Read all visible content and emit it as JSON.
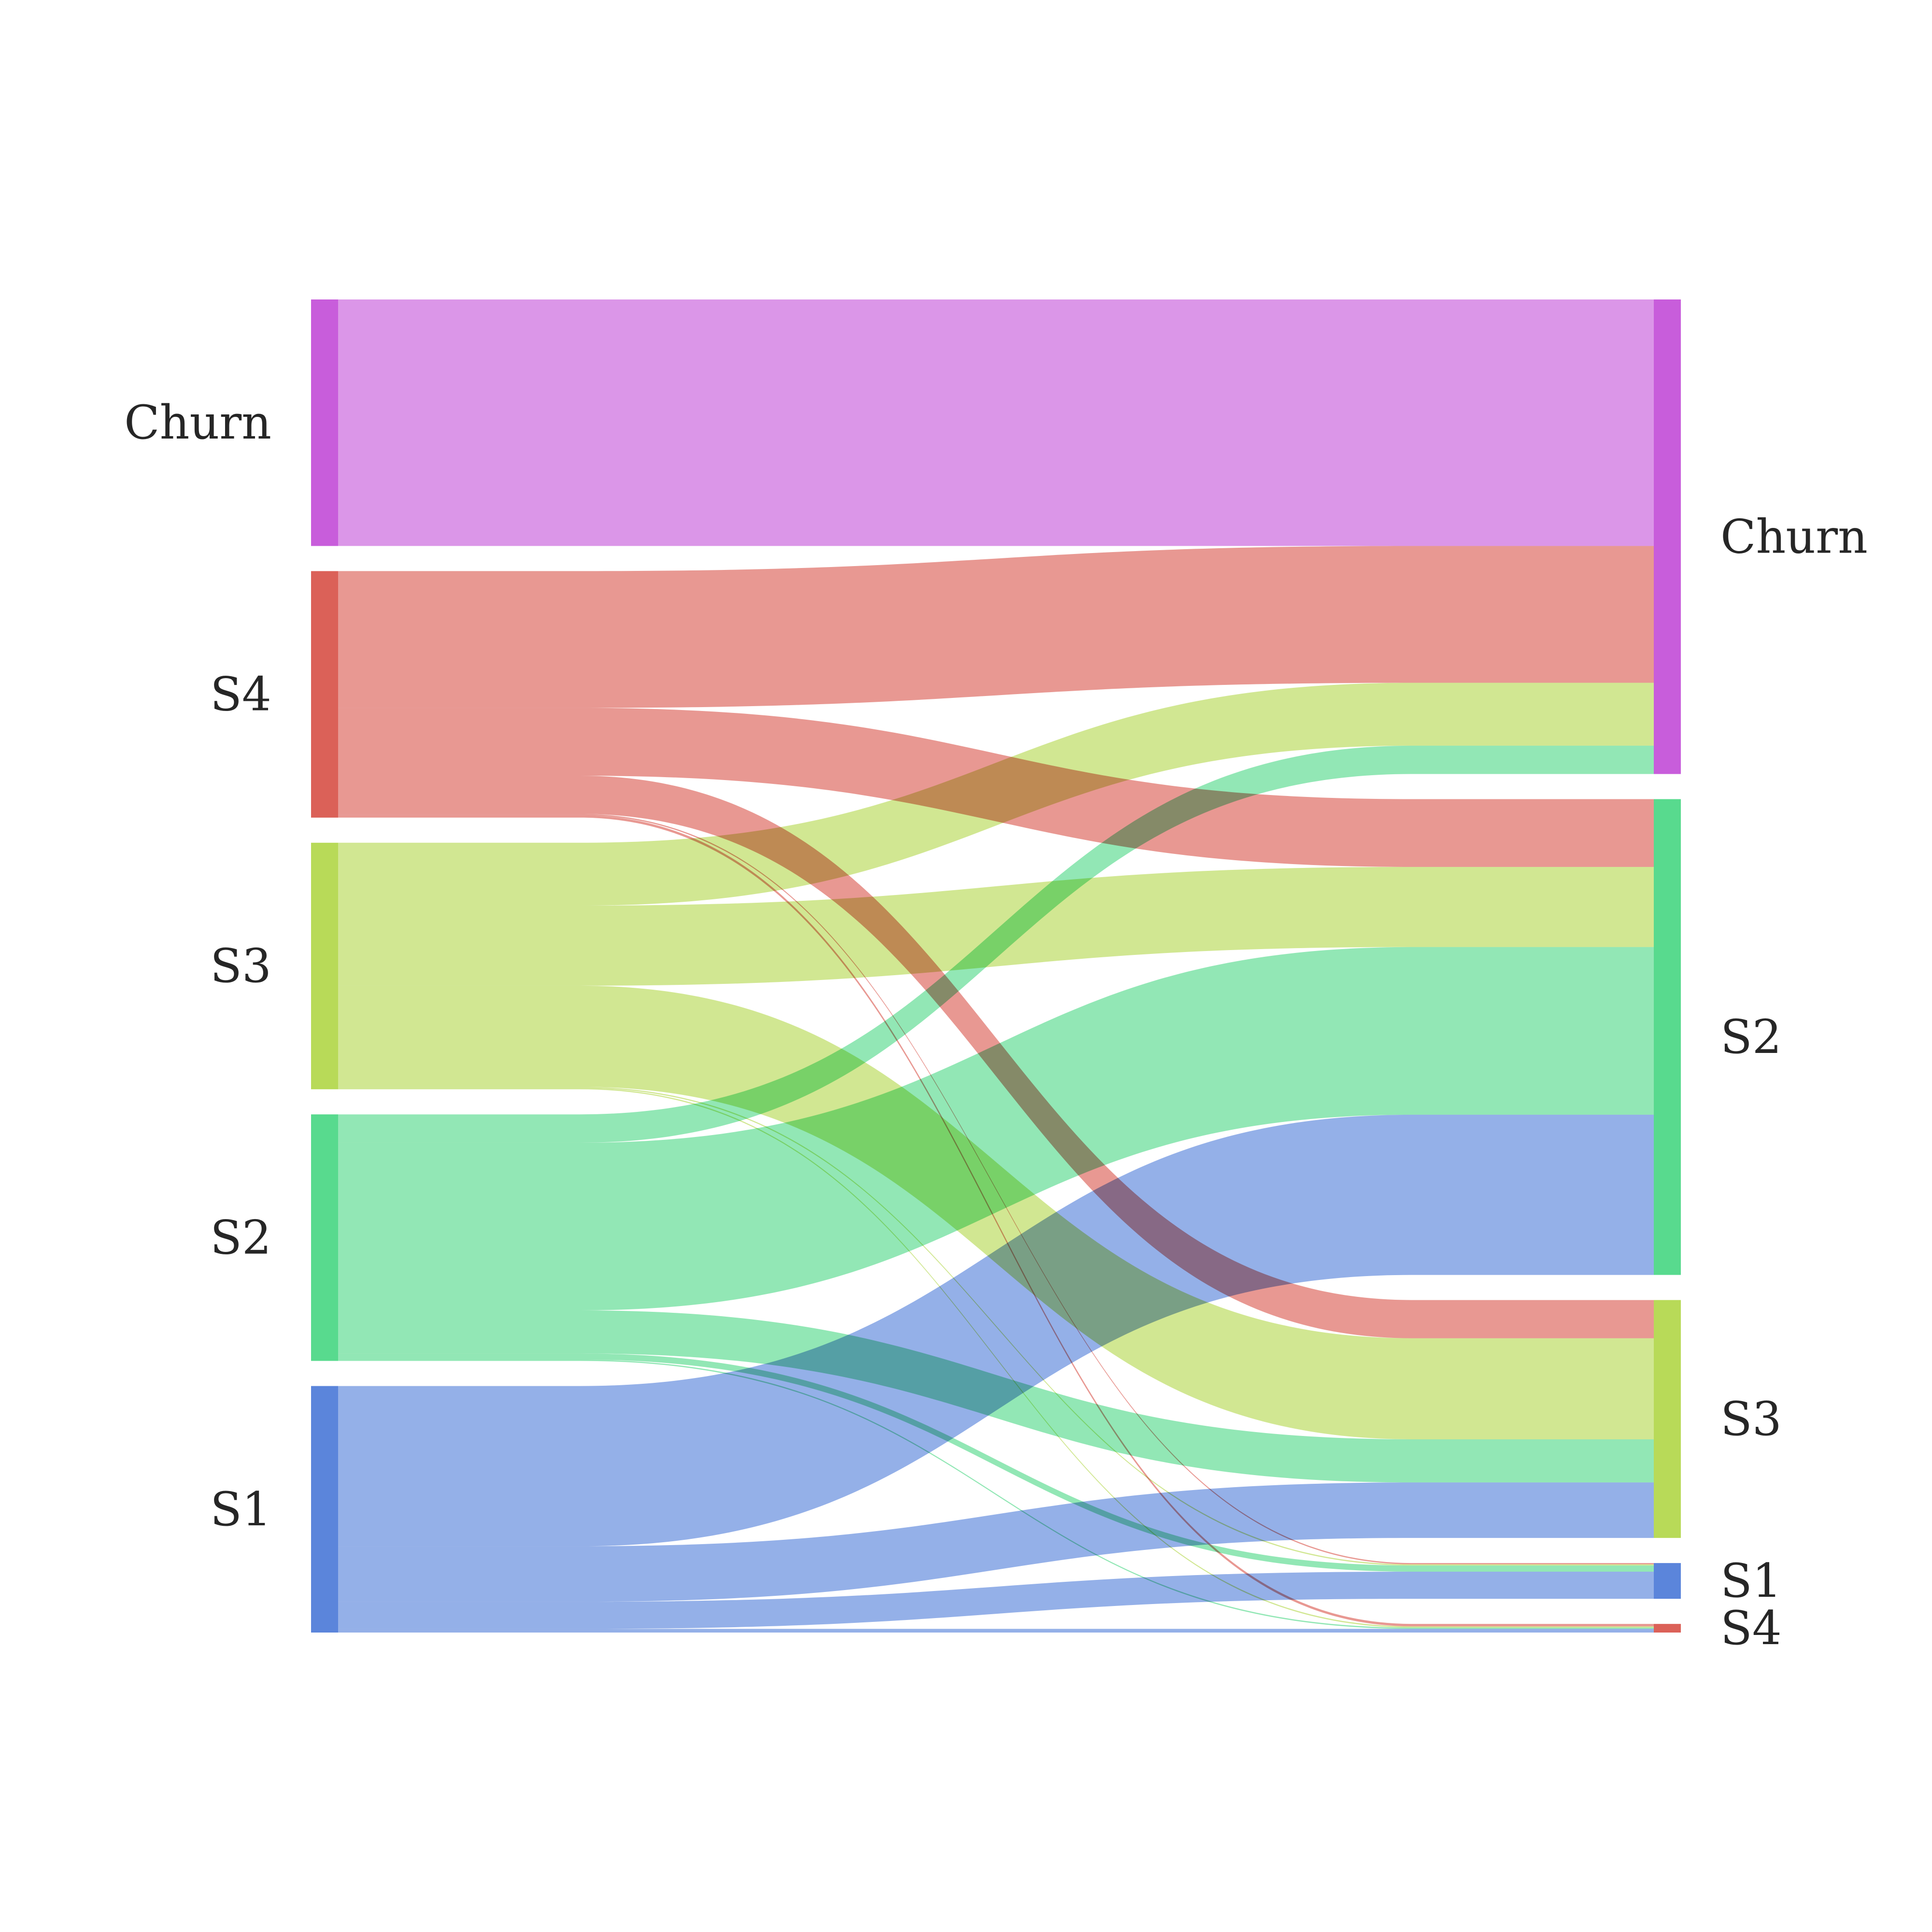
{
  "chart_data": {
    "type": "sankey",
    "title": "",
    "left_nodes": [
      {
        "id": "Churn",
        "label": "Churn",
        "color": "#c85ddb",
        "value": 100
      },
      {
        "id": "S4",
        "label": "S4",
        "color": "#db6158",
        "value": 100
      },
      {
        "id": "S3",
        "label": "S3",
        "color": "#b8da58",
        "value": 100
      },
      {
        "id": "S2",
        "label": "S2",
        "color": "#58da8e",
        "value": 100
      },
      {
        "id": "S1",
        "label": "S1",
        "color": "#5b85db",
        "value": 100
      }
    ],
    "right_nodes": [
      {
        "id": "Churn",
        "label": "Churn",
        "color": "#c85ddb"
      },
      {
        "id": "S2",
        "label": "S2",
        "color": "#58da8e"
      },
      {
        "id": "S3",
        "label": "S3",
        "color": "#b8da58"
      },
      {
        "id": "S1",
        "label": "S1",
        "color": "#5b85db"
      },
      {
        "id": "S4",
        "label": "S4",
        "color": "#db6158"
      }
    ],
    "flows": [
      {
        "source": "Churn",
        "target": "Churn",
        "value": 100
      },
      {
        "source": "S4",
        "target": "Churn",
        "value": 55.5
      },
      {
        "source": "S4",
        "target": "S2",
        "value": 27.5
      },
      {
        "source": "S4",
        "target": "S3",
        "value": 15.5
      },
      {
        "source": "S4",
        "target": "S1",
        "value": 0.5
      },
      {
        "source": "S4",
        "target": "S4",
        "value": 1
      },
      {
        "source": "S3",
        "target": "Churn",
        "value": 25.5
      },
      {
        "source": "S3",
        "target": "S2",
        "value": 32.5
      },
      {
        "source": "S3",
        "target": "S3",
        "value": 41
      },
      {
        "source": "S3",
        "target": "S1",
        "value": 0.5
      },
      {
        "source": "S3",
        "target": "S4",
        "value": 0.5
      },
      {
        "source": "S2",
        "target": "Churn",
        "value": 11.5
      },
      {
        "source": "S2",
        "target": "S2",
        "value": 68
      },
      {
        "source": "S2",
        "target": "S3",
        "value": 17.5
      },
      {
        "source": "S2",
        "target": "S1",
        "value": 2.5
      },
      {
        "source": "S2",
        "target": "S4",
        "value": 0.5
      },
      {
        "source": "S1",
        "target": "S2",
        "value": 65
      },
      {
        "source": "S1",
        "target": "S3",
        "value": 22.5
      },
      {
        "source": "S1",
        "target": "S1",
        "value": 11
      },
      {
        "source": "S1",
        "target": "S4",
        "value": 1.5
      }
    ]
  }
}
